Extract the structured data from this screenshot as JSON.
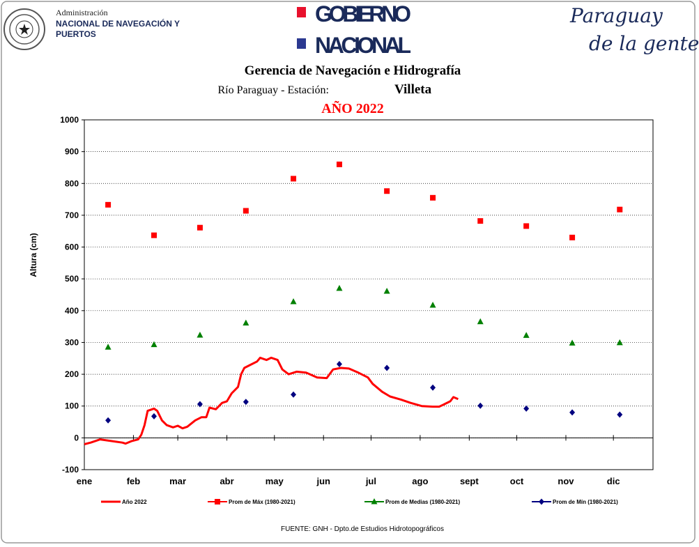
{
  "header": {
    "agency_line1": "Administración",
    "agency_line2": "NACIONAL DE NAVEGACIÓN Y",
    "agency_line3": "PUERTOS",
    "gov_line1": "GOBIERNO",
    "gov_line2": "NACIONAL",
    "slogan_line1": "Paraguay",
    "slogan_line2": "de la gente"
  },
  "chart_data": {
    "type": "line",
    "title": "Gerencia de Navegación e Hidrografía",
    "subtitle": "Río Paraguay -  Estación:",
    "station": "Villeta",
    "year_title": "AÑO 2022",
    "ylabel": "Altura (cm)",
    "source": "FUENTE:  GNH  - Dpto.de Estudios Hidrotopográficos",
    "xlim": [
      1,
      360
    ],
    "xticks": [
      {
        "value": 1,
        "label": "ene"
      },
      {
        "value": 32,
        "label": "feb"
      },
      {
        "value": 60,
        "label": "mar"
      },
      {
        "value": 91,
        "label": "abr"
      },
      {
        "value": 121,
        "label": "may"
      },
      {
        "value": 152,
        "label": "jun"
      },
      {
        "value": 182,
        "label": "jul"
      },
      {
        "value": 213,
        "label": "ago"
      },
      {
        "value": 244,
        "label": "sept"
      },
      {
        "value": 274,
        "label": "oct"
      },
      {
        "value": 305,
        "label": "nov"
      },
      {
        "value": 335,
        "label": "dic"
      }
    ],
    "ylim": [
      -100,
      1000
    ],
    "yticks": [
      -100,
      0,
      100,
      200,
      300,
      400,
      500,
      600,
      700,
      800,
      900,
      1000
    ],
    "grid": true,
    "legend": "bottom",
    "series": [
      {
        "name": "Año 2022",
        "color": "#ff0000",
        "marker": "none",
        "x": [
          1,
          5,
          11,
          18,
          25,
          27,
          31,
          35,
          37,
          39,
          41,
          45,
          47,
          50,
          53,
          57,
          60,
          63,
          66,
          71,
          75,
          78,
          80,
          84,
          88,
          91,
          94,
          98,
          100,
          102,
          106,
          110,
          112,
          116,
          119,
          123,
          126,
          130,
          135,
          141,
          148,
          154,
          158,
          163,
          168,
          174,
          180,
          183,
          189,
          194,
          201,
          207,
          214,
          221,
          225,
          228,
          232,
          234,
          237
        ],
        "values": [
          -20,
          -15,
          -5,
          -10,
          -15,
          -18,
          -10,
          -5,
          10,
          40,
          85,
          92,
          85,
          55,
          40,
          33,
          38,
          30,
          35,
          55,
          65,
          65,
          95,
          90,
          110,
          115,
          140,
          160,
          200,
          220,
          230,
          240,
          252,
          245,
          252,
          245,
          215,
          200,
          208,
          205,
          190,
          188,
          215,
          220,
          218,
          205,
          190,
          170,
          145,
          130,
          120,
          110,
          100,
          98,
          98,
          105,
          115,
          128,
          122
        ]
      },
      {
        "name": "Prom de Máx  (1980-2021)",
        "color": "#ff0000",
        "marker": "square",
        "x": [
          16,
          45,
          74,
          103,
          133,
          162,
          192,
          221,
          251,
          280,
          309,
          339
        ],
        "values": [
          733,
          637,
          661,
          714,
          815,
          860,
          776,
          755,
          682,
          666,
          630,
          718
        ]
      },
      {
        "name": "Prom de Medias  (1980-2021)",
        "color": "#008000",
        "marker": "triangle",
        "x": [
          16,
          45,
          74,
          103,
          133,
          162,
          192,
          221,
          251,
          280,
          309,
          339
        ],
        "values": [
          285,
          293,
          323,
          361,
          428,
          470,
          461,
          417,
          365,
          322,
          298,
          299
        ]
      },
      {
        "name": "Prom de Mín  (1980-2021)",
        "color": "#000080",
        "marker": "diamond",
        "x": [
          16,
          45,
          74,
          103,
          133,
          162,
          192,
          221,
          251,
          280,
          309,
          339
        ],
        "values": [
          55,
          68,
          106,
          113,
          136,
          232,
          220,
          158,
          101,
          92,
          80,
          73
        ]
      }
    ]
  }
}
